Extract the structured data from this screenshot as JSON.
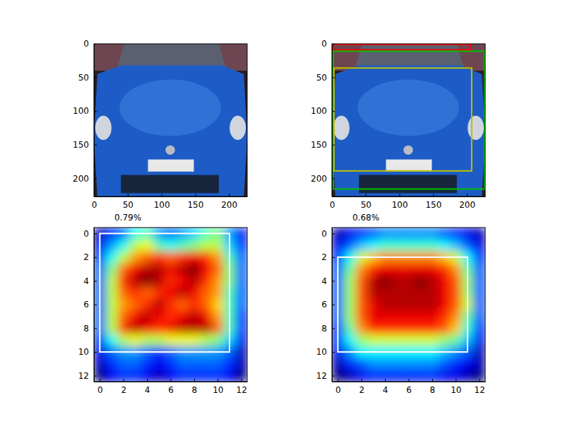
{
  "chart_data": [
    {
      "type": "image",
      "xlim": [
        0,
        227
      ],
      "ylim": [
        227,
        0
      ],
      "xticks": [
        0,
        50,
        100,
        150,
        200
      ],
      "yticks": [
        0,
        50,
        100,
        150,
        200
      ]
    },
    {
      "type": "image",
      "xlim": [
        0,
        227
      ],
      "ylim": [
        227,
        0
      ],
      "xticks": [
        0,
        50,
        100,
        150,
        200
      ],
      "yticks": [
        0,
        50,
        100,
        150,
        200
      ],
      "boxes": [
        {
          "color": "#ff0000",
          "x0": 2,
          "y0": 1,
          "x1": 206,
          "y1": 9
        },
        {
          "color": "#00c000",
          "x0": 2,
          "y0": 11,
          "x1": 226,
          "y1": 216
        },
        {
          "color": "#bfbf00",
          "x0": 3,
          "y0": 36,
          "x1": 207,
          "y1": 189
        }
      ]
    },
    {
      "type": "heatmap",
      "title": "0.79%",
      "xlim": [
        -0.5,
        12.5
      ],
      "ylim": [
        12.5,
        -0.5
      ],
      "xticks": [
        0,
        2,
        4,
        6,
        8,
        10,
        12
      ],
      "yticks": [
        0,
        2,
        4,
        6,
        8,
        10,
        12
      ],
      "cells": [
        [
          0.15,
          0.25,
          0.3,
          0.45,
          0.5,
          0.35,
          0.3,
          0.35,
          0.4,
          0.5,
          0.55,
          0.35,
          0.2
        ],
        [
          0.2,
          0.35,
          0.45,
          0.6,
          0.65,
          0.5,
          0.45,
          0.5,
          0.55,
          0.6,
          0.6,
          0.4,
          0.25
        ],
        [
          0.25,
          0.45,
          0.6,
          0.75,
          0.8,
          0.85,
          0.8,
          0.85,
          0.9,
          0.85,
          0.75,
          0.5,
          0.3
        ],
        [
          0.3,
          0.55,
          0.8,
          0.9,
          0.95,
          0.95,
          0.9,
          0.95,
          1.0,
          0.9,
          0.8,
          0.55,
          0.3
        ],
        [
          0.3,
          0.6,
          0.85,
          0.95,
          1.0,
          0.95,
          0.85,
          0.9,
          0.95,
          0.85,
          0.75,
          0.55,
          0.3
        ],
        [
          0.3,
          0.6,
          0.8,
          0.85,
          0.8,
          0.85,
          0.9,
          0.95,
          0.9,
          0.8,
          0.75,
          0.5,
          0.3
        ],
        [
          0.3,
          0.6,
          0.75,
          0.8,
          0.85,
          0.95,
          0.85,
          0.8,
          0.85,
          0.8,
          0.7,
          0.5,
          0.3
        ],
        [
          0.3,
          0.6,
          0.8,
          0.9,
          0.95,
          0.9,
          0.85,
          0.9,
          0.95,
          0.9,
          0.75,
          0.5,
          0.25
        ],
        [
          0.3,
          0.6,
          0.85,
          0.95,
          0.9,
          0.85,
          0.9,
          0.95,
          0.95,
          0.95,
          0.8,
          0.5,
          0.25
        ],
        [
          0.25,
          0.45,
          0.6,
          0.65,
          0.6,
          0.6,
          0.65,
          0.65,
          0.65,
          0.6,
          0.55,
          0.4,
          0.2
        ],
        [
          0.2,
          0.3,
          0.35,
          0.35,
          0.3,
          0.25,
          0.3,
          0.35,
          0.35,
          0.35,
          0.35,
          0.3,
          0.15
        ],
        [
          0.15,
          0.25,
          0.3,
          0.3,
          0.25,
          0.2,
          0.25,
          0.3,
          0.3,
          0.3,
          0.3,
          0.25,
          0.15
        ],
        [
          0.1,
          0.2,
          0.25,
          0.25,
          0.2,
          0.15,
          0.2,
          0.25,
          0.25,
          0.25,
          0.25,
          0.2,
          0.1
        ]
      ],
      "boxes": [
        {
          "color": "#ffffff",
          "x0": 0,
          "y0": 0,
          "x1": 11,
          "y1": 10
        }
      ]
    },
    {
      "type": "heatmap",
      "title": "0.68%",
      "xlim": [
        -0.5,
        12.5
      ],
      "ylim": [
        12.5,
        -0.5
      ],
      "xticks": [
        0,
        2,
        4,
        6,
        8,
        10,
        12
      ],
      "yticks": [
        0,
        2,
        4,
        6,
        8,
        10,
        12
      ],
      "cells": [
        [
          0.1,
          0.15,
          0.2,
          0.25,
          0.3,
          0.3,
          0.3,
          0.3,
          0.3,
          0.25,
          0.2,
          0.15,
          0.1
        ],
        [
          0.15,
          0.25,
          0.35,
          0.4,
          0.45,
          0.45,
          0.45,
          0.45,
          0.45,
          0.4,
          0.35,
          0.25,
          0.15
        ],
        [
          0.2,
          0.4,
          0.6,
          0.7,
          0.75,
          0.75,
          0.75,
          0.75,
          0.75,
          0.7,
          0.6,
          0.4,
          0.2
        ],
        [
          0.25,
          0.5,
          0.75,
          0.85,
          0.9,
          0.9,
          0.9,
          0.9,
          0.9,
          0.85,
          0.75,
          0.5,
          0.25
        ],
        [
          0.25,
          0.55,
          0.8,
          0.95,
          1.0,
          0.95,
          0.95,
          1.0,
          0.95,
          0.9,
          0.8,
          0.55,
          0.25
        ],
        [
          0.25,
          0.55,
          0.8,
          0.95,
          0.95,
          0.95,
          0.95,
          0.95,
          0.95,
          0.9,
          0.8,
          0.55,
          0.25
        ],
        [
          0.25,
          0.55,
          0.8,
          0.9,
          0.95,
          0.95,
          0.95,
          0.95,
          0.95,
          0.9,
          0.8,
          0.6,
          0.25
        ],
        [
          0.25,
          0.55,
          0.8,
          0.9,
          0.9,
          0.9,
          0.9,
          0.9,
          0.9,
          0.85,
          0.75,
          0.5,
          0.25
        ],
        [
          0.2,
          0.5,
          0.75,
          0.85,
          0.85,
          0.85,
          0.85,
          0.85,
          0.85,
          0.8,
          0.7,
          0.45,
          0.2
        ],
        [
          0.2,
          0.4,
          0.55,
          0.6,
          0.6,
          0.6,
          0.6,
          0.6,
          0.6,
          0.55,
          0.5,
          0.35,
          0.15
        ],
        [
          0.15,
          0.3,
          0.4,
          0.4,
          0.4,
          0.4,
          0.4,
          0.4,
          0.4,
          0.35,
          0.3,
          0.25,
          0.1
        ],
        [
          0.1,
          0.2,
          0.25,
          0.3,
          0.3,
          0.3,
          0.3,
          0.3,
          0.3,
          0.25,
          0.2,
          0.15,
          0.1
        ],
        [
          0.05,
          0.1,
          0.15,
          0.2,
          0.2,
          0.2,
          0.2,
          0.2,
          0.2,
          0.15,
          0.15,
          0.1,
          0.05
        ]
      ],
      "boxes": [
        {
          "color": "#ffffff",
          "x0": 0,
          "y0": 2,
          "x1": 11,
          "y1": 10
        }
      ]
    }
  ]
}
